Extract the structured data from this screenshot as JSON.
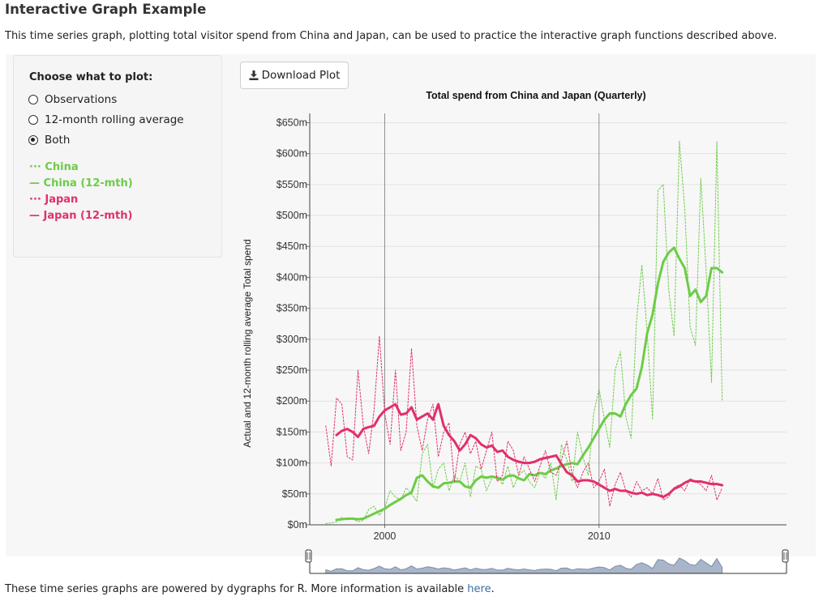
{
  "page": {
    "title": "Interactive Graph Example",
    "intro": "This time series graph, plotting total visitor spend from China and Japan, can be used to practice the interactive graph functions described above.",
    "footer_text": "These time series graphs are powered by dygraphs for R. More information is available ",
    "footer_link": "here",
    "footer_end": "."
  },
  "controls": {
    "heading": "Choose what to plot:",
    "options": [
      "Observations",
      "12-month rolling average",
      "Both"
    ],
    "selected": "Both",
    "download_label": "Download Plot"
  },
  "legend": [
    {
      "marker": "···",
      "label": "China",
      "color": "#6ccc47"
    },
    {
      "marker": "—",
      "label": "China (12-mth)",
      "color": "#6ccc47"
    },
    {
      "marker": "···",
      "label": "Japan",
      "color": "#e0306a"
    },
    {
      "marker": "—",
      "label": "Japan (12-mth)",
      "color": "#e0306a"
    }
  ],
  "chart_data": {
    "type": "line",
    "title": "Total spend from China and Japan (Quarterly)",
    "xlabel": "",
    "ylabel": "Actual and 12-month rolling average Total spend",
    "xlim": [
      1996.5,
      2018.75
    ],
    "ylim": [
      0,
      665
    ],
    "yticks": [
      0,
      50,
      100,
      150,
      200,
      250,
      300,
      350,
      400,
      450,
      500,
      550,
      600,
      650
    ],
    "ytick_labels": [
      "$0m",
      "$50m",
      "$100m",
      "$150m",
      "$200m",
      "$250m",
      "$300m",
      "$350m",
      "$400m",
      "$450m",
      "$500m",
      "$550m",
      "$600m",
      "$650m"
    ],
    "xticks": [
      2000,
      2010
    ],
    "xtick_labels": [
      "2000",
      "2010"
    ],
    "grid": true,
    "x_start": 1997.25,
    "x_step": 0.25,
    "series": [
      {
        "name": "China",
        "color": "#6ccc47",
        "style": "dotted",
        "values": [
          2,
          3,
          5,
          12,
          8,
          10,
          5,
          7,
          25,
          30,
          15,
          28,
          55,
          45,
          40,
          60,
          50,
          38,
          115,
          130,
          60,
          90,
          100,
          55,
          80,
          70,
          100,
          45,
          95,
          90,
          55,
          75,
          80,
          65,
          95,
          60,
          80,
          88,
          70,
          60,
          85,
          75,
          100,
          40,
          130,
          105,
          70,
          150,
          110,
          80,
          180,
          220,
          170,
          125,
          250,
          280,
          175,
          140,
          330,
          420,
          310,
          170,
          540,
          550,
          380,
          305,
          620,
          510,
          320,
          290,
          560,
          410,
          230,
          620,
          200
        ]
      },
      {
        "name": "China (12-mth)",
        "color": "#6ccc47",
        "style": "solid",
        "values": [
          null,
          null,
          8,
          9,
          10,
          10,
          9,
          10,
          14,
          18,
          22,
          26,
          32,
          37,
          42,
          48,
          52,
          76,
          80,
          70,
          62,
          60,
          67,
          68,
          70,
          70,
          62,
          60,
          72,
          78,
          76,
          78,
          76,
          73,
          79,
          80,
          75,
          72,
          82,
          80,
          84,
          82,
          88,
          91,
          95,
          98,
          100,
          98,
          112,
          125,
          140,
          155,
          170,
          180,
          180,
          175,
          195,
          210,
          220,
          255,
          310,
          340,
          390,
          425,
          440,
          448,
          430,
          415,
          370,
          380,
          360,
          370,
          415,
          415,
          408
        ]
      },
      {
        "name": "Japan",
        "color": "#e0306a",
        "style": "dotted",
        "values": [
          160,
          95,
          205,
          195,
          110,
          105,
          250,
          160,
          115,
          185,
          305,
          180,
          130,
          250,
          120,
          150,
          285,
          160,
          120,
          170,
          195,
          110,
          150,
          165,
          70,
          130,
          150,
          115,
          135,
          90,
          120,
          150,
          70,
          80,
          135,
          120,
          80,
          110,
          90,
          70,
          95,
          120,
          85,
          80,
          105,
          135,
          80,
          60,
          85,
          100,
          60,
          70,
          90,
          30,
          65,
          85,
          55,
          45,
          70,
          55,
          60,
          50,
          75,
          40,
          45,
          60,
          65,
          55,
          75,
          70,
          65,
          55,
          80,
          40,
          60
        ]
      },
      {
        "name": "Japan (12-mth)",
        "color": "#e0306a",
        "style": "solid",
        "values": [
          null,
          null,
          145,
          152,
          155,
          150,
          142,
          155,
          158,
          160,
          175,
          185,
          190,
          195,
          178,
          180,
          190,
          170,
          175,
          180,
          170,
          195,
          160,
          145,
          135,
          120,
          130,
          145,
          140,
          130,
          125,
          128,
          118,
          120,
          110,
          105,
          102,
          100,
          100,
          102,
          106,
          108,
          110,
          112,
          98,
          85,
          80,
          70,
          72,
          72,
          70,
          65,
          60,
          55,
          58,
          55,
          55,
          52,
          50,
          52,
          48,
          50,
          48,
          45,
          50,
          58,
          62,
          68,
          72,
          70,
          70,
          68,
          66,
          66,
          64
        ]
      }
    ]
  }
}
